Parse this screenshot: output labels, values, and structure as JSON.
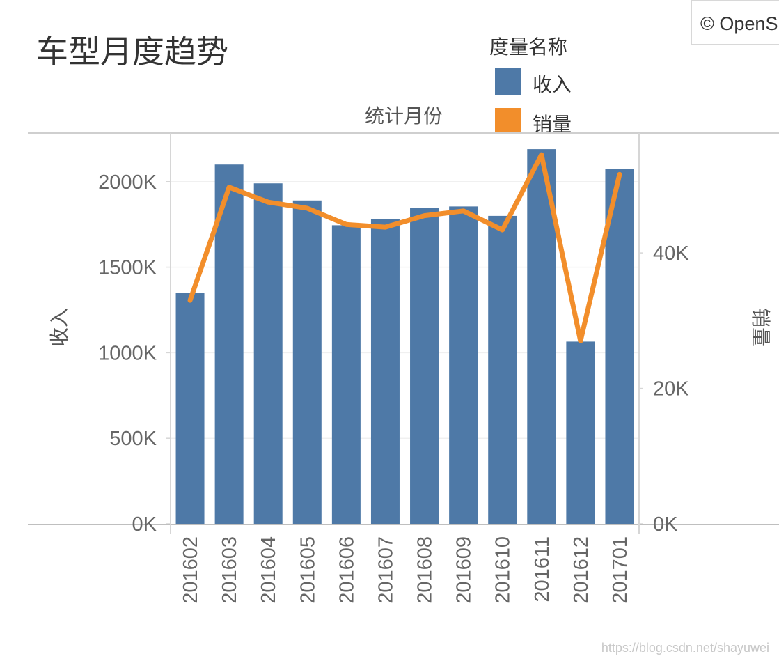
{
  "title": "车型月度趋势",
  "legend": {
    "title": "度量名称",
    "items": [
      {
        "label": "收入",
        "color": "#4e79a7"
      },
      {
        "label": "销量",
        "color": "#f28e2b"
      }
    ]
  },
  "x_axis_header": "统计月份",
  "map_credit": "© OpenS",
  "watermark": "https://blog.csdn.net/shayuwei",
  "chart_data": {
    "type": "bar",
    "title": "车型月度趋势",
    "xlabel": "统计月份",
    "ylabel": "收入",
    "y2label": "销量",
    "categories": [
      "201602",
      "201603",
      "201604",
      "201605",
      "201606",
      "201607",
      "201608",
      "201609",
      "201610",
      "201611",
      "201612",
      "201701"
    ],
    "series": [
      {
        "name": "收入",
        "type": "bar",
        "axis": "left",
        "color": "#4e79a7",
        "values": [
          1350000,
          2100000,
          1990000,
          1890000,
          1745000,
          1780000,
          1845000,
          1855000,
          1800000,
          2190000,
          1065000,
          2075000
        ]
      },
      {
        "name": "销量",
        "type": "line",
        "axis": "right",
        "color": "#f28e2b",
        "values": [
          33000,
          49700,
          47500,
          46600,
          44200,
          43800,
          45500,
          46200,
          43400,
          54500,
          27000,
          51600
        ]
      }
    ],
    "ylim": [
      0,
      2280000
    ],
    "y2lim": [
      0,
      57600
    ],
    "yticks": [
      0,
      500000,
      1000000,
      1500000,
      2000000
    ],
    "ytick_labels": [
      "0K",
      "500K",
      "1000K",
      "1500K",
      "2000K"
    ],
    "y2ticks": [
      0,
      20000,
      40000
    ],
    "y2tick_labels": [
      "0K",
      "20K",
      "40K"
    ],
    "legend_position": "top-right",
    "grid": true
  }
}
